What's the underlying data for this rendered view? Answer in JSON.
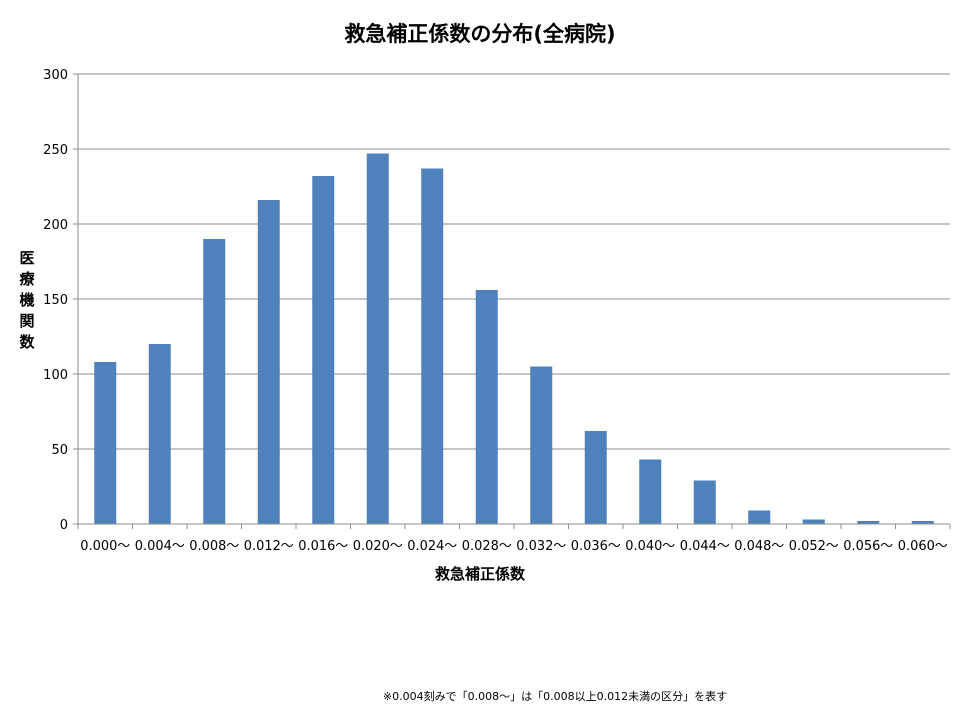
{
  "chart_data": {
    "type": "bar",
    "title": "救急補正係数の分布(全病院)",
    "xlabel": "救急補正係数",
    "ylabel": "医療機関数",
    "categories": [
      "0.000〜",
      "0.004〜",
      "0.008〜",
      "0.012〜",
      "0.016〜",
      "0.020〜",
      "0.024〜",
      "0.028〜",
      "0.032〜",
      "0.036〜",
      "0.040〜",
      "0.044〜",
      "0.048〜",
      "0.052〜",
      "0.056〜",
      "0.060〜"
    ],
    "values": [
      108,
      120,
      190,
      216,
      232,
      247,
      237,
      156,
      105,
      62,
      43,
      29,
      9,
      3,
      2,
      2
    ],
    "ylim": [
      0,
      300
    ],
    "yticks": [
      0,
      50,
      100,
      150,
      200,
      250,
      300
    ],
    "grid": true,
    "bar_color": "#4F81BD"
  },
  "footnote": "※0.004刻みで「0.008〜」は「0.008以上0.012未満の区分」を表す"
}
